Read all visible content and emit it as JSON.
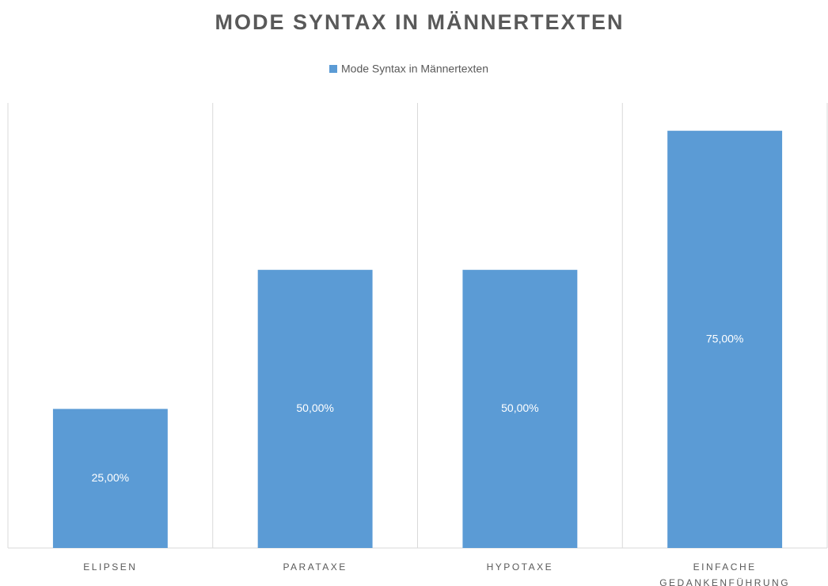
{
  "chart_data": {
    "type": "bar",
    "title": "MODE SYNTAX IN MÄNNERTEXTEN",
    "categories": [
      "ELIPSEN",
      "PARATAXE",
      "HYPOTAXE",
      "EINFACHE GEDANKENFÜHRUNG"
    ],
    "series": [
      {
        "name": "Mode Syntax in Männertexten",
        "color": "#5b9bd5",
        "values": [
          25,
          50,
          50,
          75
        ],
        "value_labels": [
          "25,00%",
          "50,00%",
          "50,00%",
          "75,00%"
        ]
      }
    ],
    "ylim": [
      0,
      80
    ],
    "legend": "top"
  }
}
